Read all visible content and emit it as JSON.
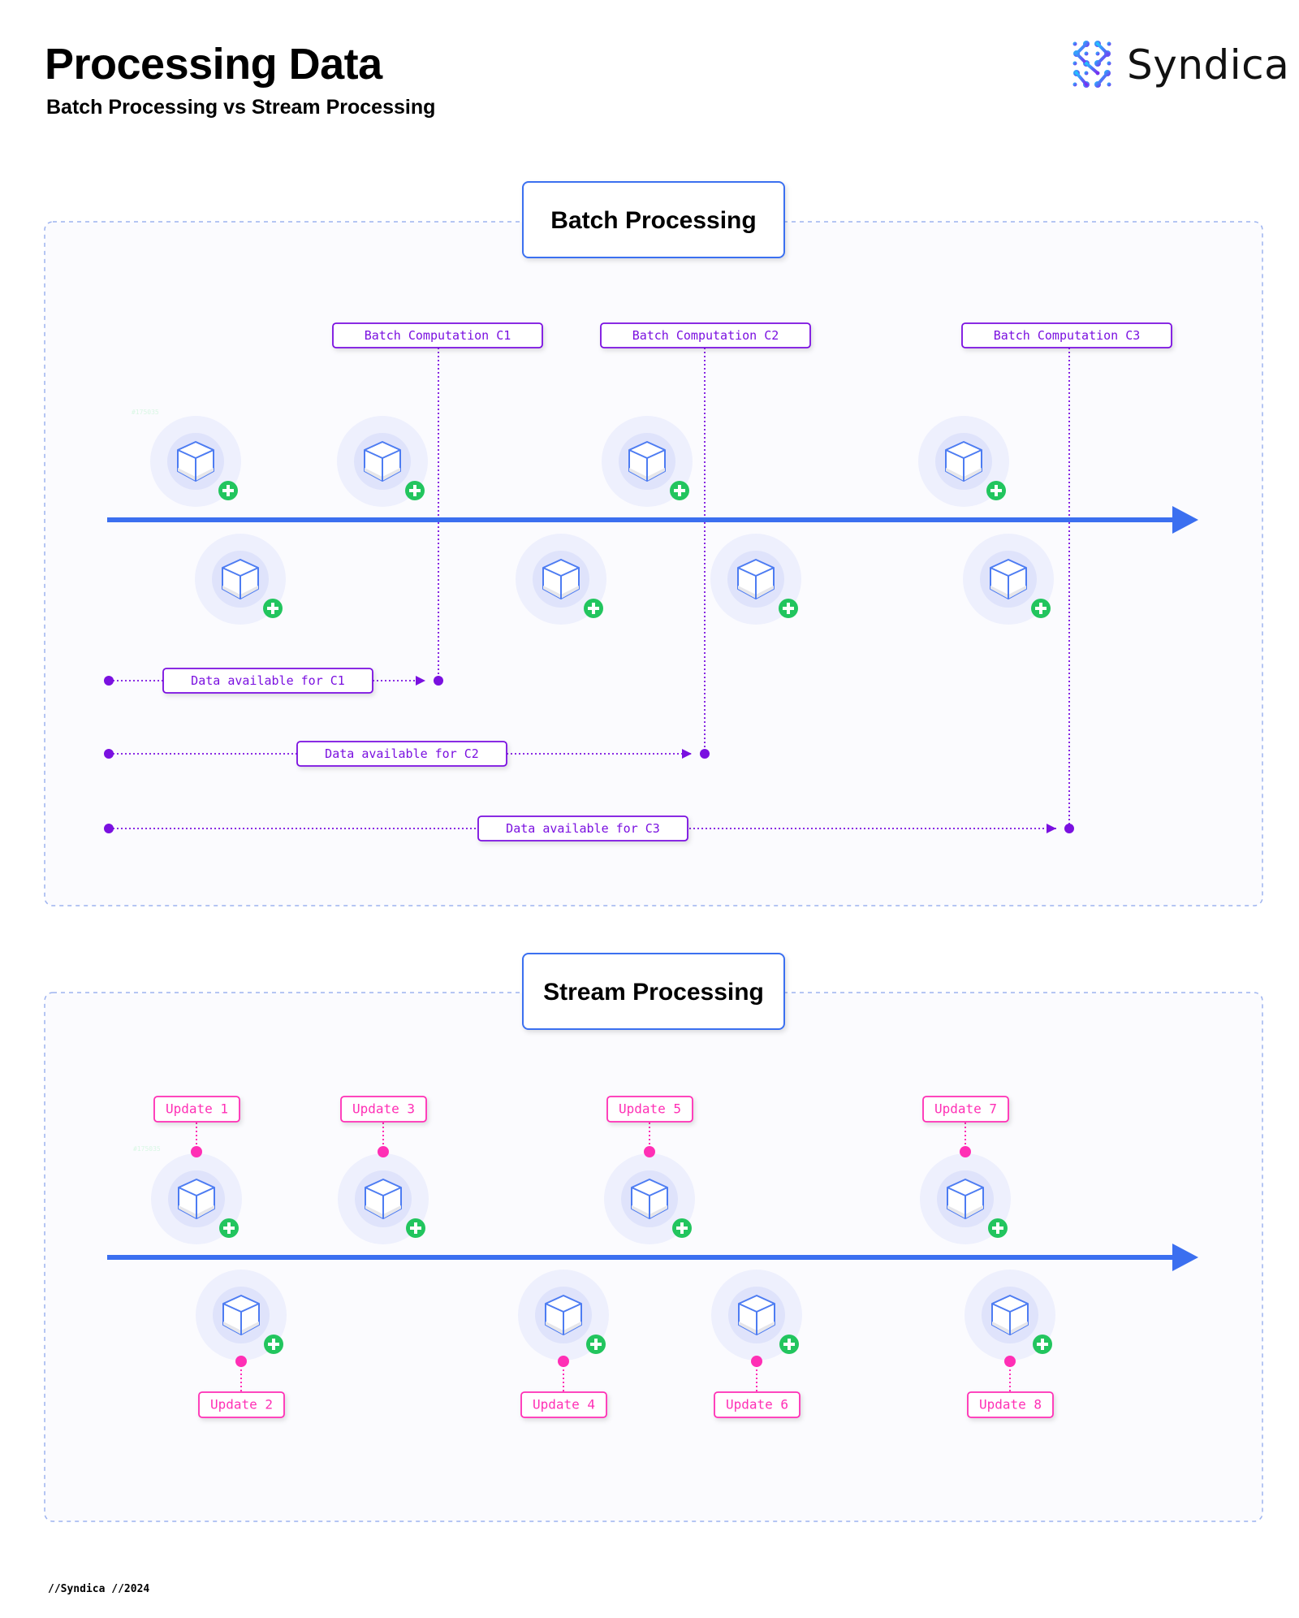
{
  "header": {
    "title": "Processing Data",
    "subtitle": "Batch Processing vs Stream Processing"
  },
  "logo": {
    "text": "Syndica",
    "icon": "syndica-dots-logo-icon"
  },
  "colors": {
    "axis": "#3b6ff0",
    "batch_accent": "#7a10e0",
    "stream_accent": "#ff2fb5",
    "plus_badge": "#22c55e",
    "node_outer": "#eef0fd",
    "node_inner": "#dfe3fb",
    "panel_border": "#9db3ef"
  },
  "batch": {
    "title": "Batch Processing",
    "watermark": "#175035",
    "computations": [
      {
        "label": "Batch Computation C1"
      },
      {
        "label": "Batch Computation C2"
      },
      {
        "label": "Batch Computation C3"
      }
    ],
    "availability": [
      {
        "label": "Data available for C1"
      },
      {
        "label": "Data available for C2"
      },
      {
        "label": "Data available for C3"
      }
    ],
    "node_icon": "cube-icon",
    "badge_icon": "plus-circle-icon"
  },
  "stream": {
    "title": "Stream Processing",
    "watermark": "#175035",
    "updates": [
      {
        "label": "Update 1"
      },
      {
        "label": "Update 2"
      },
      {
        "label": "Update 3"
      },
      {
        "label": "Update 4"
      },
      {
        "label": "Update 5"
      },
      {
        "label": "Update 6"
      },
      {
        "label": "Update 7"
      },
      {
        "label": "Update 8"
      }
    ],
    "node_icon": "cube-icon",
    "badge_icon": "plus-circle-icon"
  },
  "footer": {
    "text": "//Syndica //2024"
  }
}
